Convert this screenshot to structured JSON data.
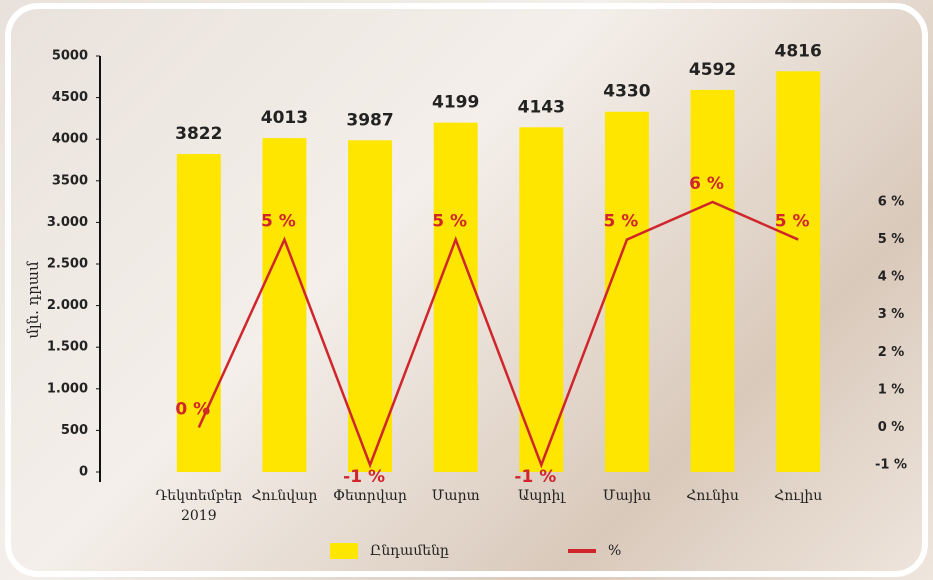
{
  "chart_data": {
    "type": "bar-line",
    "y_label": "մլն. դրամ",
    "categories": [
      "Դեկտեմբեր 2019",
      "Հունվար",
      "Փետրվար",
      "Մարտ",
      "Ապրիլ",
      "Մայիս",
      "Հունիս",
      "Հուլիս"
    ],
    "series": [
      {
        "name": "Ընդամենը",
        "color": "#ffe600",
        "type": "bar",
        "values": [
          3822,
          4013,
          3987,
          4199,
          4143,
          4330,
          4592,
          4816
        ]
      },
      {
        "name": "%",
        "color": "#d0262b",
        "type": "line",
        "axis": "y2",
        "values": [
          0,
          5,
          -1,
          5,
          -1,
          5,
          6,
          5
        ],
        "value_labels": [
          "0 %",
          "5 %",
          "-1 %",
          "5 %",
          "-1 %",
          "5 %",
          "6 %",
          "5 %"
        ]
      }
    ],
    "ylim": [
      0,
      5000
    ],
    "yticks": [
      0,
      500,
      {
        "value": 1000,
        "label": "1.000"
      },
      {
        "value": 1500,
        "label": "1.500"
      },
      {
        "value": 2000,
        "label": "2.000"
      },
      {
        "value": 2500,
        "label": "2.500"
      },
      {
        "value": 3000,
        "label": "3.000"
      },
      3500,
      4000,
      4500,
      5000
    ],
    "y2lim": [
      -1,
      6
    ],
    "y2ticks": [
      {
        "value": -1,
        "label": "-1 %"
      },
      {
        "value": 0,
        "label": "0 %"
      },
      {
        "value": 1,
        "label": "1 %"
      },
      {
        "value": 2,
        "label": "2 %"
      },
      {
        "value": 3,
        "label": "3 %"
      },
      {
        "value": 4,
        "label": "4 %"
      },
      {
        "value": 5,
        "label": "5 %"
      },
      {
        "value": 6,
        "label": "6 %"
      }
    ]
  }
}
